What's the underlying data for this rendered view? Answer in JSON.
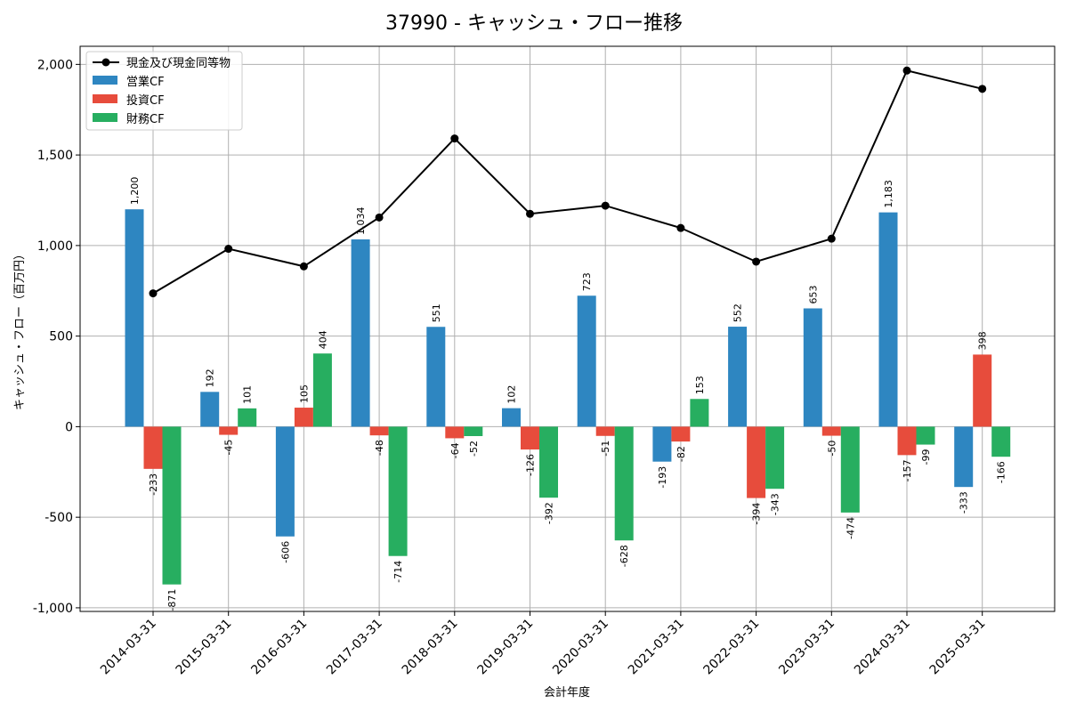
{
  "chart_data": {
    "type": "bar",
    "title": "37990 - キャッシュ・フロー推移",
    "xlabel": "会計年度",
    "ylabel": "キャッシュ・フロー（百万円）",
    "ylim": [
      -1020,
      2100
    ],
    "yticks": [
      -1000,
      -500,
      0,
      500,
      1000,
      1500,
      2000
    ],
    "ytick_labels": [
      "-1,000",
      "-500",
      "0",
      "500",
      "1,000",
      "1,500",
      "2,000"
    ],
    "grid": true,
    "legend_position": "top-left",
    "categories": [
      "2014-03-31",
      "2015-03-31",
      "2016-03-31",
      "2017-03-31",
      "2018-03-31",
      "2019-03-31",
      "2020-03-31",
      "2021-03-31",
      "2022-03-31",
      "2023-03-31",
      "2024-03-31",
      "2025-03-31"
    ],
    "series": [
      {
        "name": "営業CF",
        "kind": "bar",
        "color": "#2e86c1",
        "values": [
          1200,
          192,
          -606,
          1034,
          551,
          102,
          723,
          -193,
          552,
          653,
          1183,
          -333
        ],
        "labels": [
          "1,200",
          "192",
          "-606",
          "1,034",
          "551",
          "102",
          "723",
          "-193",
          "552",
          "653",
          "1,183",
          "-333"
        ]
      },
      {
        "name": "投資CF",
        "kind": "bar",
        "color": "#e74c3c",
        "values": [
          -233,
          -45,
          105,
          -48,
          -64,
          -126,
          -51,
          -82,
          -394,
          -50,
          -157,
          398
        ],
        "labels": [
          "-233",
          "-45",
          "105",
          "-48",
          "-64",
          "-126",
          "-51",
          "-82",
          "-394",
          "-50",
          "-157",
          "398"
        ]
      },
      {
        "name": "財務CF",
        "kind": "bar",
        "color": "#27ae60",
        "values": [
          -871,
          101,
          404,
          -714,
          -52,
          -392,
          -628,
          153,
          -343,
          -474,
          -99,
          -166
        ],
        "labels": [
          "-871",
          "101",
          "404",
          "-714",
          "-52",
          "-392",
          "-628",
          "153",
          "-343",
          "-474",
          "-99",
          "-166"
        ]
      },
      {
        "name": "現金及び現金同等物",
        "kind": "line",
        "color": "#000000",
        "values": [
          736,
          982,
          885,
          1155,
          1591,
          1175,
          1220,
          1097,
          911,
          1038,
          1966,
          1865
        ]
      }
    ]
  }
}
